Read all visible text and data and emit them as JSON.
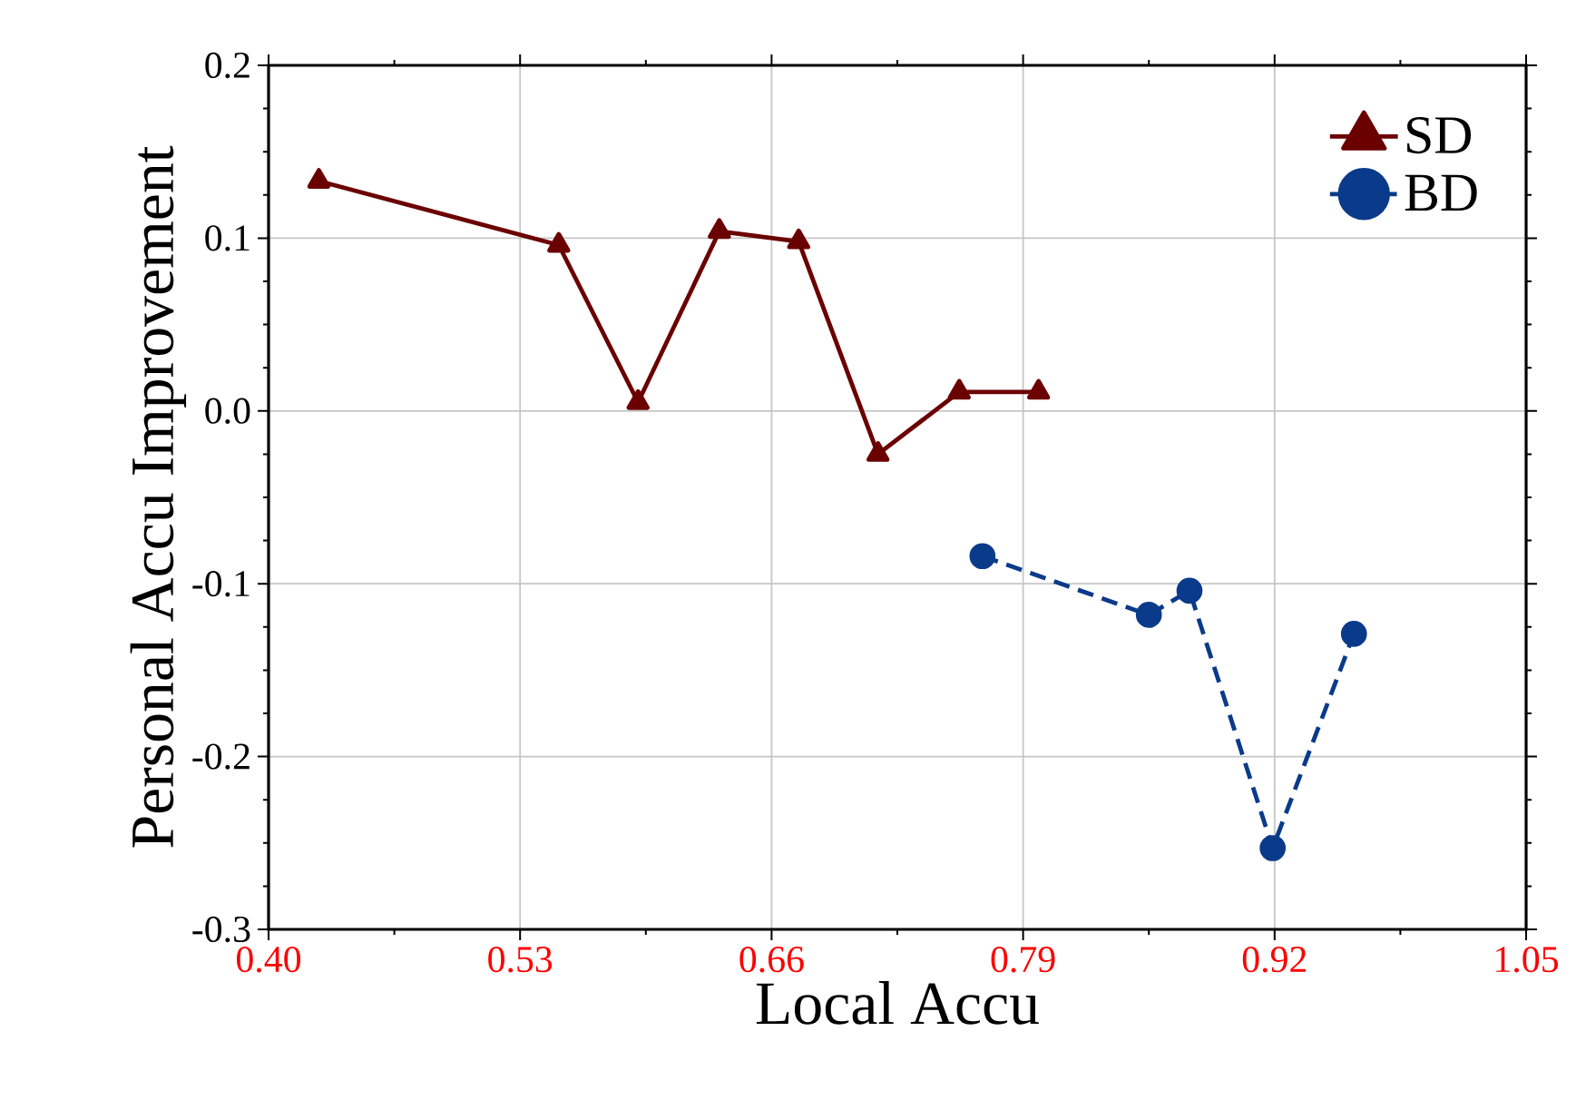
{
  "chart_data": {
    "type": "line",
    "xlabel": "Local Accu",
    "ylabel": "Personal Accu Improvement",
    "xlim": [
      0.4,
      1.05
    ],
    "xticks": [
      {
        "value": 0.4,
        "label": "0.40"
      },
      0.53,
      0.66,
      0.79,
      0.92,
      {
        "value": 1.05,
        "label": "1.05"
      }
    ],
    "ylim": [
      -0.3,
      0.2
    ],
    "yticks": [
      -0.3,
      -0.2,
      -0.1,
      {
        "value": 0.0,
        "label": "0.0"
      },
      0.1,
      0.2
    ],
    "grid": true,
    "legend": "top right",
    "series": [
      {
        "name": "SD",
        "color": "#6b0000",
        "marker": "triangle",
        "line_style": "solid",
        "x": [
          0.426,
          0.55,
          0.591,
          0.633,
          0.674,
          0.715,
          0.757,
          0.798
        ],
        "values": [
          0.133,
          0.096,
          0.005,
          0.104,
          0.098,
          -0.025,
          0.011,
          0.011
        ]
      },
      {
        "name": "BD",
        "color": "#0a3a8a",
        "marker": "circle",
        "line_style": "dashed",
        "x": [
          0.769,
          0.855,
          0.876,
          0.919,
          0.961
        ],
        "values": [
          -0.084,
          -0.118,
          -0.104,
          -0.253,
          -0.129
        ]
      }
    ]
  }
}
